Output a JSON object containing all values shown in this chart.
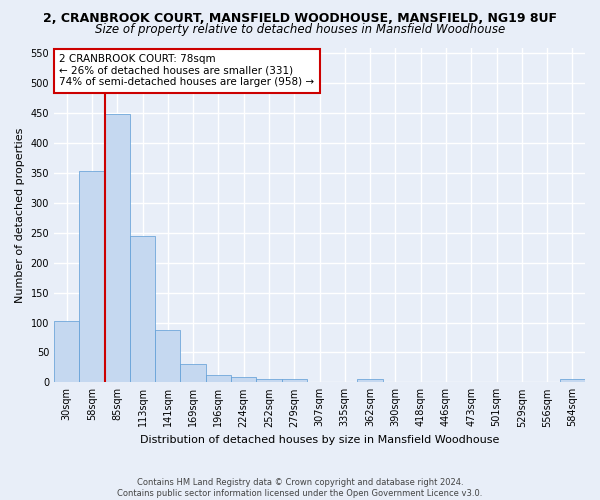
{
  "title1": "2, CRANBROOK COURT, MANSFIELD WOODHOUSE, MANSFIELD, NG19 8UF",
  "title2": "Size of property relative to detached houses in Mansfield Woodhouse",
  "xlabel": "Distribution of detached houses by size in Mansfield Woodhouse",
  "ylabel": "Number of detached properties",
  "categories": [
    "30sqm",
    "58sqm",
    "85sqm",
    "113sqm",
    "141sqm",
    "169sqm",
    "196sqm",
    "224sqm",
    "252sqm",
    "279sqm",
    "307sqm",
    "335sqm",
    "362sqm",
    "390sqm",
    "418sqm",
    "446sqm",
    "473sqm",
    "501sqm",
    "529sqm",
    "556sqm",
    "584sqm"
  ],
  "values": [
    103,
    353,
    448,
    245,
    88,
    30,
    13,
    9,
    5,
    5,
    0,
    0,
    6,
    0,
    0,
    0,
    0,
    0,
    0,
    0,
    5
  ],
  "bar_color": "#c5d8f0",
  "bar_edge_color": "#5b9bd5",
  "vline_color": "#cc0000",
  "vline_x": 1.5,
  "annotation_text": "2 CRANBROOK COURT: 78sqm\n← 26% of detached houses are smaller (331)\n74% of semi-detached houses are larger (958) →",
  "annotation_box_color": "#ffffff",
  "annotation_box_edge": "#cc0000",
  "ylim": [
    0,
    560
  ],
  "yticks": [
    0,
    50,
    100,
    150,
    200,
    250,
    300,
    350,
    400,
    450,
    500,
    550
  ],
  "footnote": "Contains HM Land Registry data © Crown copyright and database right 2024.\nContains public sector information licensed under the Open Government Licence v3.0.",
  "bg_color": "#e8eef8",
  "plot_bg_color": "#e8eef8",
  "grid_color": "#ffffff",
  "title_fontsize": 9,
  "subtitle_fontsize": 8.5,
  "axis_label_fontsize": 8,
  "tick_fontsize": 7,
  "annotation_fontsize": 7.5
}
